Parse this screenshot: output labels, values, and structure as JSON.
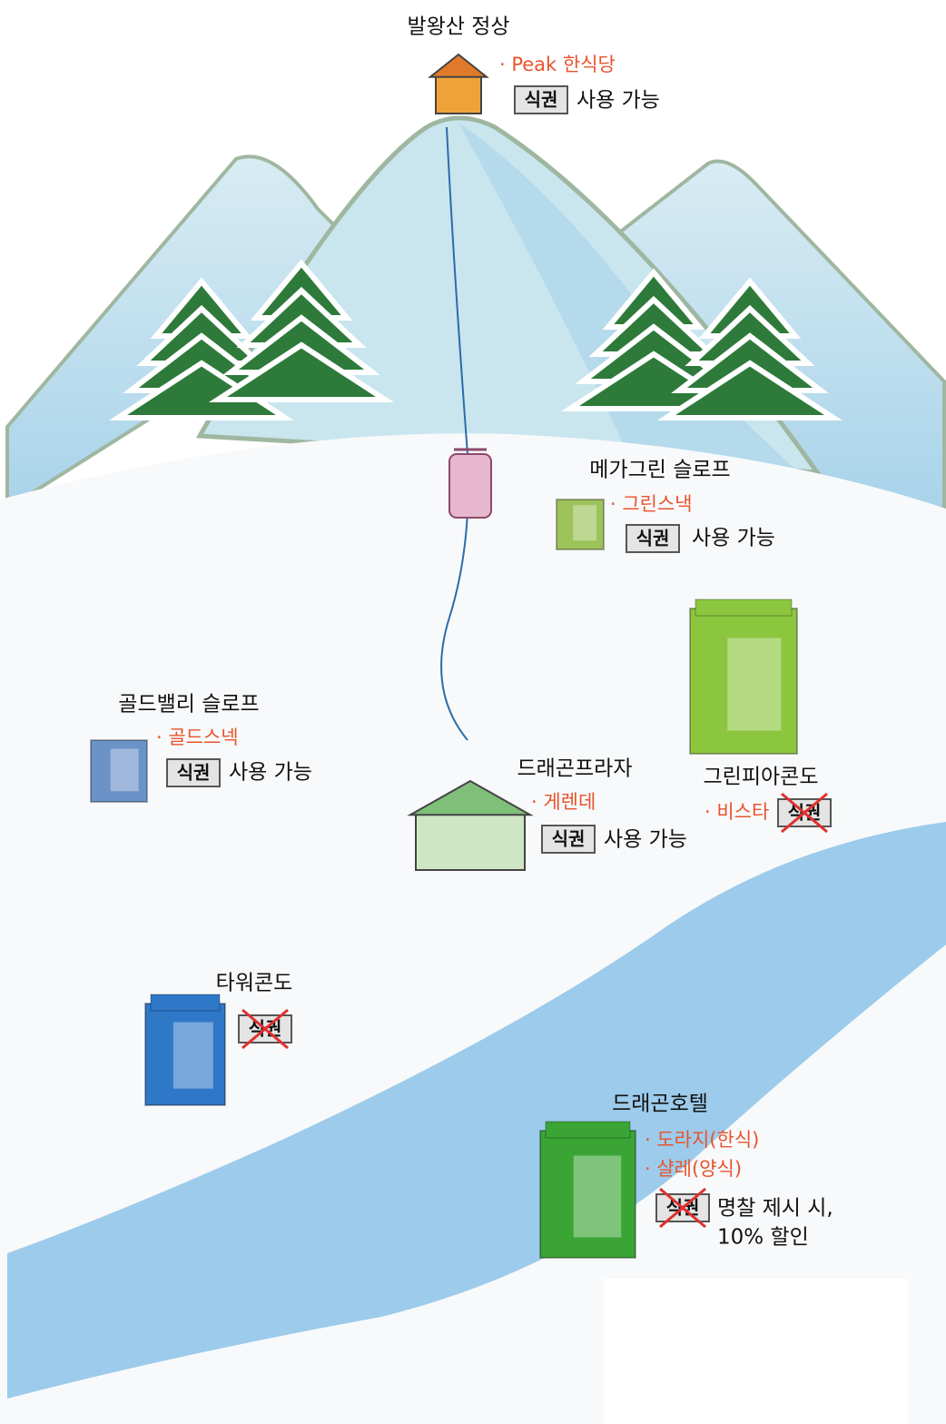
{
  "locations": [
    {
      "name": "발왕산 정상",
      "restaurants": [
        "· Peak 한식당"
      ],
      "ticket": "식권",
      "ticket_status": "사용 가능"
    },
    {
      "name": "메가그린 슬로프",
      "restaurants": [
        "· 그린스낵"
      ],
      "ticket": "식권",
      "ticket_status": "사용 가능"
    },
    {
      "name": "골드밸리 슬로프",
      "restaurants": [
        "· 골드스넥"
      ],
      "ticket": "식권",
      "ticket_status": "사용 가능"
    },
    {
      "name": "드래곤프라자",
      "restaurants": [
        "· 게렌데"
      ],
      "ticket": "식권",
      "ticket_status": "사용 가능"
    },
    {
      "name": "그린피아콘도",
      "restaurants": [
        "· 비스타"
      ],
      "ticket": "식권",
      "ticket_crossed": true
    },
    {
      "name": "타워콘도",
      "ticket": "식권",
      "ticket_crossed": true
    },
    {
      "name": "드래곤호텔",
      "restaurants": [
        "· 도라지(한식)",
        "· 샬레(양식)"
      ],
      "ticket": "식권",
      "ticket_crossed": true,
      "ticket_note": [
        "명찰 제시 시,",
        "10% 할인"
      ]
    }
  ]
}
